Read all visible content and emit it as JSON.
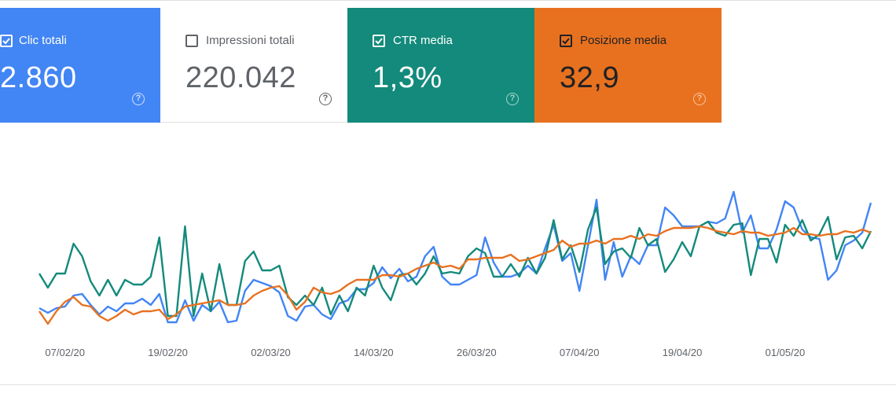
{
  "metrics": {
    "clicks": {
      "label": "Clic totali",
      "value": "2.860",
      "checked": true,
      "color": "#4285f4"
    },
    "impressions": {
      "label": "Impressioni totali",
      "value": "220.042",
      "checked": false,
      "color": "#5e35b1"
    },
    "ctr": {
      "label": "CTR media",
      "value": "1,3%",
      "checked": true,
      "color": "#138a7b"
    },
    "position": {
      "label": "Posizione media",
      "value": "32,9",
      "checked": true,
      "color": "#e8711f"
    }
  },
  "help_glyph": "?",
  "chart_data": {
    "type": "line",
    "xlabel": "",
    "ylabel": "",
    "ylim": [
      0,
      100
    ],
    "x_tick_labels": [
      "07/02/20",
      "19/02/20",
      "02/03/20",
      "14/03/20",
      "26/03/20",
      "07/04/20",
      "19/04/20",
      "01/05/20"
    ],
    "x_tick_indices": [
      3,
      15,
      27,
      39,
      51,
      63,
      75,
      87
    ],
    "series": [
      {
        "name": "Clic totali",
        "color": "#4285f4",
        "values": [
          12,
          9,
          12,
          13,
          20,
          21,
          14,
          8,
          13,
          10,
          15,
          15,
          18,
          14,
          21,
          3,
          3,
          17,
          4,
          14,
          10,
          16,
          3,
          4,
          23,
          30,
          28,
          26,
          22,
          7,
          4,
          13,
          14,
          8,
          5,
          15,
          17,
          24,
          24,
          28,
          38,
          31,
          37,
          29,
          32,
          45,
          51,
          32,
          27,
          27,
          30,
          33,
          57,
          41,
          32,
          32,
          34,
          39,
          34,
          50,
          65,
          42,
          47,
          23,
          52,
          81,
          30,
          54,
          32,
          45,
          40,
          52,
          52,
          76,
          71,
          64,
          64,
          64,
          67,
          66,
          69,
          86,
          60,
          71,
          50,
          50,
          62,
          80,
          76,
          62,
          57,
          56,
          30,
          36,
          52,
          55,
          60,
          79
        ]
      },
      {
        "name": "CTR media",
        "color": "#138a7b",
        "values": [
          34,
          25,
          34,
          34,
          53,
          45,
          29,
          20,
          30,
          20,
          30,
          27,
          27,
          32,
          57,
          7,
          7,
          64,
          7,
          34,
          10,
          40,
          14,
          14,
          42,
          48,
          36,
          36,
          39,
          19,
          14,
          20,
          14,
          25,
          8,
          20,
          10,
          25,
          20,
          39,
          25,
          17,
          33,
          34,
          27,
          34,
          45,
          34,
          35,
          34,
          45,
          50,
          47,
          32,
          32,
          40,
          32,
          44,
          34,
          44,
          68,
          43,
          52,
          35,
          62,
          76,
          40,
          48,
          50,
          44,
          63,
          52,
          56,
          35,
          43,
          54,
          45,
          64,
          67,
          60,
          58,
          65,
          66,
          33,
          56,
          56,
          41,
          65,
          58,
          68,
          55,
          59,
          70,
          43,
          57,
          58,
          50,
          61
        ]
      },
      {
        "name": "Posizione media",
        "color": "#e8711f",
        "values": [
          10,
          2,
          10,
          16,
          19,
          14,
          13,
          7,
          4,
          7,
          11,
          8,
          10,
          10,
          11,
          5,
          8,
          13,
          14,
          15,
          16,
          17,
          14,
          14,
          15,
          20,
          23,
          25,
          26,
          20,
          11,
          16,
          25,
          22,
          21,
          23,
          27,
          30,
          30,
          30,
          33,
          33,
          32,
          34,
          37,
          39,
          41,
          38,
          39,
          37,
          43,
          43,
          44,
          44,
          44,
          46,
          42,
          43,
          45,
          47,
          49,
          55,
          51,
          53,
          53,
          55,
          53,
          56,
          56,
          58,
          56,
          59,
          58,
          61,
          63,
          63,
          63,
          64,
          63,
          61,
          60,
          59,
          61,
          60,
          60,
          58,
          59,
          60,
          63,
          59,
          59,
          58,
          59,
          59,
          61,
          60,
          62,
          60
        ]
      }
    ]
  }
}
